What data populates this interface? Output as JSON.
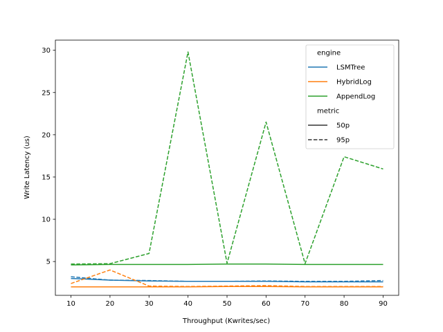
{
  "chart_data": {
    "type": "line",
    "title": "",
    "xlabel": "Throughput (Kwrites/sec)",
    "ylabel": "Write Latency (us)",
    "x": [
      10,
      20,
      30,
      40,
      50,
      60,
      70,
      80,
      90
    ],
    "xlim": [
      6,
      94
    ],
    "ylim": [
      1.0,
      31.2
    ],
    "xticks": [
      10,
      20,
      30,
      40,
      50,
      60,
      70,
      80,
      90
    ],
    "yticks": [
      5,
      10,
      15,
      20,
      25,
      30
    ],
    "grid": false,
    "legend_position": "top-right",
    "legend": {
      "hue_title": "engine",
      "style_title": "metric",
      "styles": [
        {
          "name": "50p",
          "dash": "solid"
        },
        {
          "name": "95p",
          "dash": "dashed"
        }
      ]
    },
    "series": [
      {
        "engine": "LSMTree",
        "metric": "50p",
        "color": "#1f77b4",
        "values": [
          3.0,
          2.8,
          2.7,
          2.65,
          2.65,
          2.65,
          2.6,
          2.6,
          2.6
        ]
      },
      {
        "engine": "LSMTree",
        "metric": "95p",
        "color": "#1f77b4",
        "values": [
          3.2,
          2.8,
          2.75,
          2.65,
          2.65,
          2.7,
          2.65,
          2.65,
          2.75
        ]
      },
      {
        "engine": "HybridLog",
        "metric": "50p",
        "color": "#ff7f0e",
        "values": [
          2.0,
          2.0,
          2.0,
          2.0,
          2.05,
          2.05,
          2.0,
          2.0,
          2.0
        ]
      },
      {
        "engine": "HybridLog",
        "metric": "95p",
        "color": "#ff7f0e",
        "values": [
          2.4,
          4.0,
          2.1,
          2.05,
          2.1,
          2.15,
          2.05,
          2.05,
          2.05
        ]
      },
      {
        "engine": "AppendLog",
        "metric": "50p",
        "color": "#2ca02c",
        "values": [
          4.6,
          4.65,
          4.65,
          4.65,
          4.7,
          4.7,
          4.65,
          4.65,
          4.65
        ]
      },
      {
        "engine": "AppendLog",
        "metric": "95p",
        "color": "#2ca02c",
        "values": [
          4.7,
          4.75,
          5.95,
          29.8,
          4.8,
          21.5,
          4.75,
          17.4,
          15.95
        ]
      }
    ]
  }
}
